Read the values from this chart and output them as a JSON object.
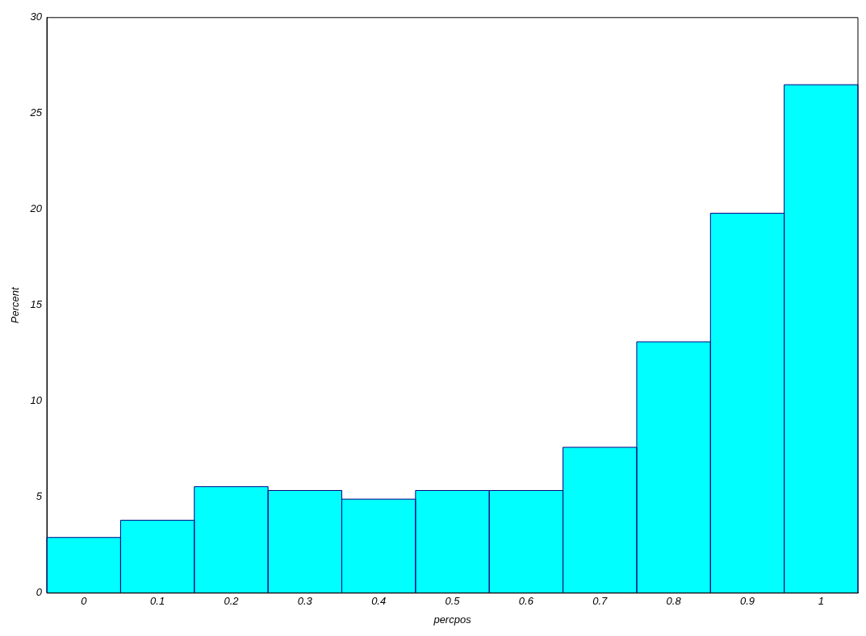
{
  "chart_data": {
    "type": "histogram",
    "xlabel": "percpos",
    "ylabel": "Percent",
    "bins": [
      -0.05,
      0.05,
      0.15,
      0.25,
      0.35,
      0.45,
      0.55,
      0.65,
      0.75,
      0.85,
      0.95,
      1.05
    ],
    "values": [
      2.9,
      3.8,
      5.55,
      5.35,
      4.9,
      5.35,
      5.35,
      7.6,
      13.1,
      19.8,
      26.5
    ],
    "color": "#00ffff",
    "xlim": [
      -0.05,
      1.05
    ],
    "xticks": [
      0,
      0.1,
      0.2,
      0.3,
      0.4,
      0.5,
      0.6,
      0.7,
      0.8,
      0.9,
      1
    ],
    "ylim": [
      0,
      30
    ],
    "yticks": [
      0,
      5,
      10,
      15,
      20,
      25,
      30
    ],
    "grid": false,
    "legend": false
  }
}
